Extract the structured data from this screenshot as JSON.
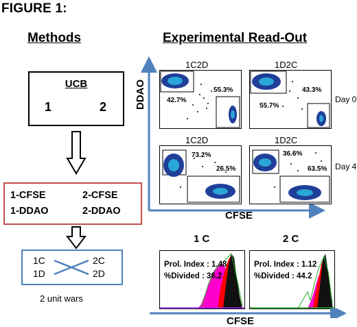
{
  "figure_title": "FIGURE 1:",
  "methods": {
    "title": "Methods",
    "ucb": {
      "label": "UCB",
      "left": "1",
      "right": "2"
    },
    "labeling": {
      "line1_left": "1-CFSE",
      "line1_right": "2-CFSE",
      "line2_left": "1-DDAO",
      "line2_right": "2-DDAO"
    },
    "combo": {
      "top_left": "1C",
      "top_right": "2C",
      "bottom_left": "1D",
      "bottom_right": "2D"
    },
    "caption": "2 unit wars",
    "colors": {
      "red_box": "#c0504d",
      "blue_box": "#4f81bd",
      "arrow": "#000000"
    }
  },
  "readout": {
    "title": "Experimental Read-Out",
    "y_axis": "DDAO",
    "x_axis": "CFSE",
    "axis_color": "#4f81bd",
    "panels": [
      {
        "title": "1C2D",
        "pct_a": "42.7%",
        "pct_b": "55.3%",
        "day": ""
      },
      {
        "title": "1D2C",
        "pct_a": "55.7%",
        "pct_b": "43.3%",
        "day": "Day 0"
      },
      {
        "title": "1C2D",
        "pct_a": "73.2%",
        "pct_b": "26.5%",
        "day": ""
      },
      {
        "title": "1D2C",
        "pct_a": "36.6%",
        "pct_b": "63.5%",
        "day": "Day 4"
      }
    ],
    "histograms": [
      {
        "title": "1 C",
        "prol_index": "Prol. Index : 1.48",
        "divided": "%Divided : 36.2"
      },
      {
        "title": "2 C",
        "prol_index": "Prol. Index : 1.12",
        "divided": "%Divided : 44.2"
      }
    ],
    "hist_x_axis": "CFSE",
    "hist_colors": {
      "peak": "#ff00cc",
      "right": "#ff0000",
      "fit": "#22aa22"
    }
  }
}
